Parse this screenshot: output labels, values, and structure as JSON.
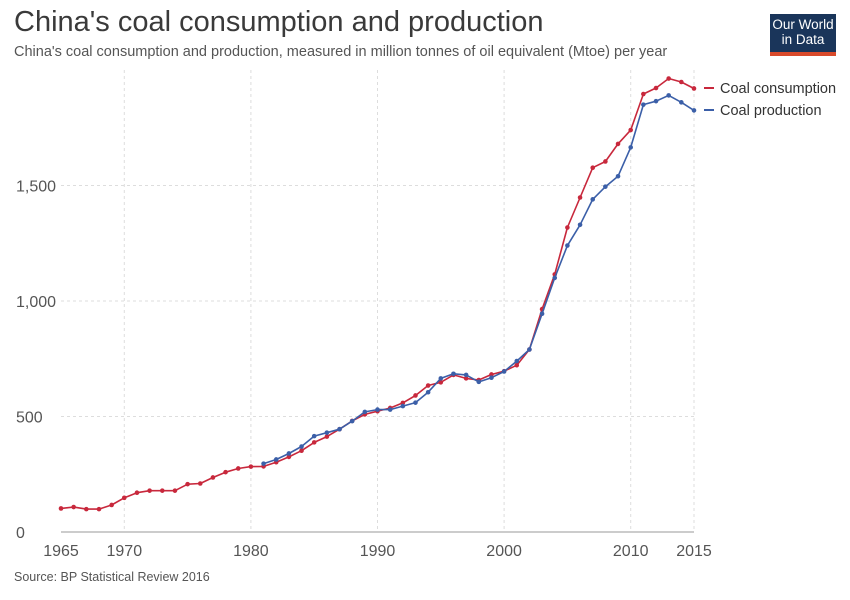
{
  "chart_data": {
    "type": "line",
    "title": "China's coal consumption and production",
    "subtitle": "China's coal consumption and production, measured in million tonnes of oil equivalent (Mtoe) per year",
    "source": "Source: BP Statistical Review 2016",
    "logo": [
      "Our World",
      "in Data"
    ],
    "xlim": [
      1965,
      2015
    ],
    "ylim": [
      0,
      2000
    ],
    "x_ticks": [
      1965,
      1970,
      1980,
      1990,
      2000,
      2010,
      2015
    ],
    "y_ticks": [
      0,
      500,
      1000,
      1500
    ],
    "y_tick_labels": [
      "0",
      "500",
      "1,000",
      "1,500"
    ],
    "grid": true,
    "legend_position": "top-right",
    "colors": {
      "consumption": "#c8283c",
      "production": "#3b5fa8"
    },
    "series": [
      {
        "name": "Coal consumption",
        "x": [
          1965,
          1966,
          1967,
          1968,
          1969,
          1970,
          1971,
          1972,
          1973,
          1974,
          1975,
          1976,
          1977,
          1978,
          1979,
          1980,
          1981,
          1982,
          1983,
          1984,
          1985,
          1986,
          1987,
          1988,
          1989,
          1990,
          1991,
          1992,
          1993,
          1994,
          1995,
          1996,
          1997,
          1998,
          1999,
          2000,
          2001,
          2002,
          2003,
          2004,
          2005,
          2006,
          2007,
          2008,
          2009,
          2010,
          2011,
          2012,
          2013,
          2014,
          2015
        ],
        "values": [
          102,
          108,
          99,
          99,
          117,
          148,
          170,
          179,
          179,
          179,
          207,
          210,
          236,
          259,
          275,
          283,
          284,
          302,
          325,
          352,
          388,
          413,
          445,
          481,
          509,
          523,
          537,
          559,
          591,
          634,
          648,
          680,
          665,
          658,
          682,
          696,
          722,
          790,
          965,
          1115,
          1318,
          1448,
          1577,
          1604,
          1680,
          1740,
          1896,
          1922,
          1963,
          1948,
          1920
        ]
      },
      {
        "name": "Coal production",
        "x": [
          1981,
          1982,
          1983,
          1984,
          1985,
          1986,
          1987,
          1988,
          1989,
          1990,
          1991,
          1992,
          1993,
          1994,
          1995,
          1996,
          1997,
          1998,
          1999,
          2000,
          2001,
          2002,
          2003,
          2004,
          2005,
          2006,
          2007,
          2008,
          2009,
          2010,
          2011,
          2012,
          2013,
          2014,
          2015
        ],
        "values": [
          296,
          314,
          340,
          370,
          415,
          430,
          445,
          480,
          520,
          530,
          530,
          545,
          560,
          605,
          665,
          685,
          680,
          650,
          668,
          695,
          740,
          790,
          945,
          1100,
          1240,
          1330,
          1440,
          1495,
          1540,
          1665,
          1850,
          1865,
          1890,
          1860,
          1825
        ]
      }
    ]
  }
}
